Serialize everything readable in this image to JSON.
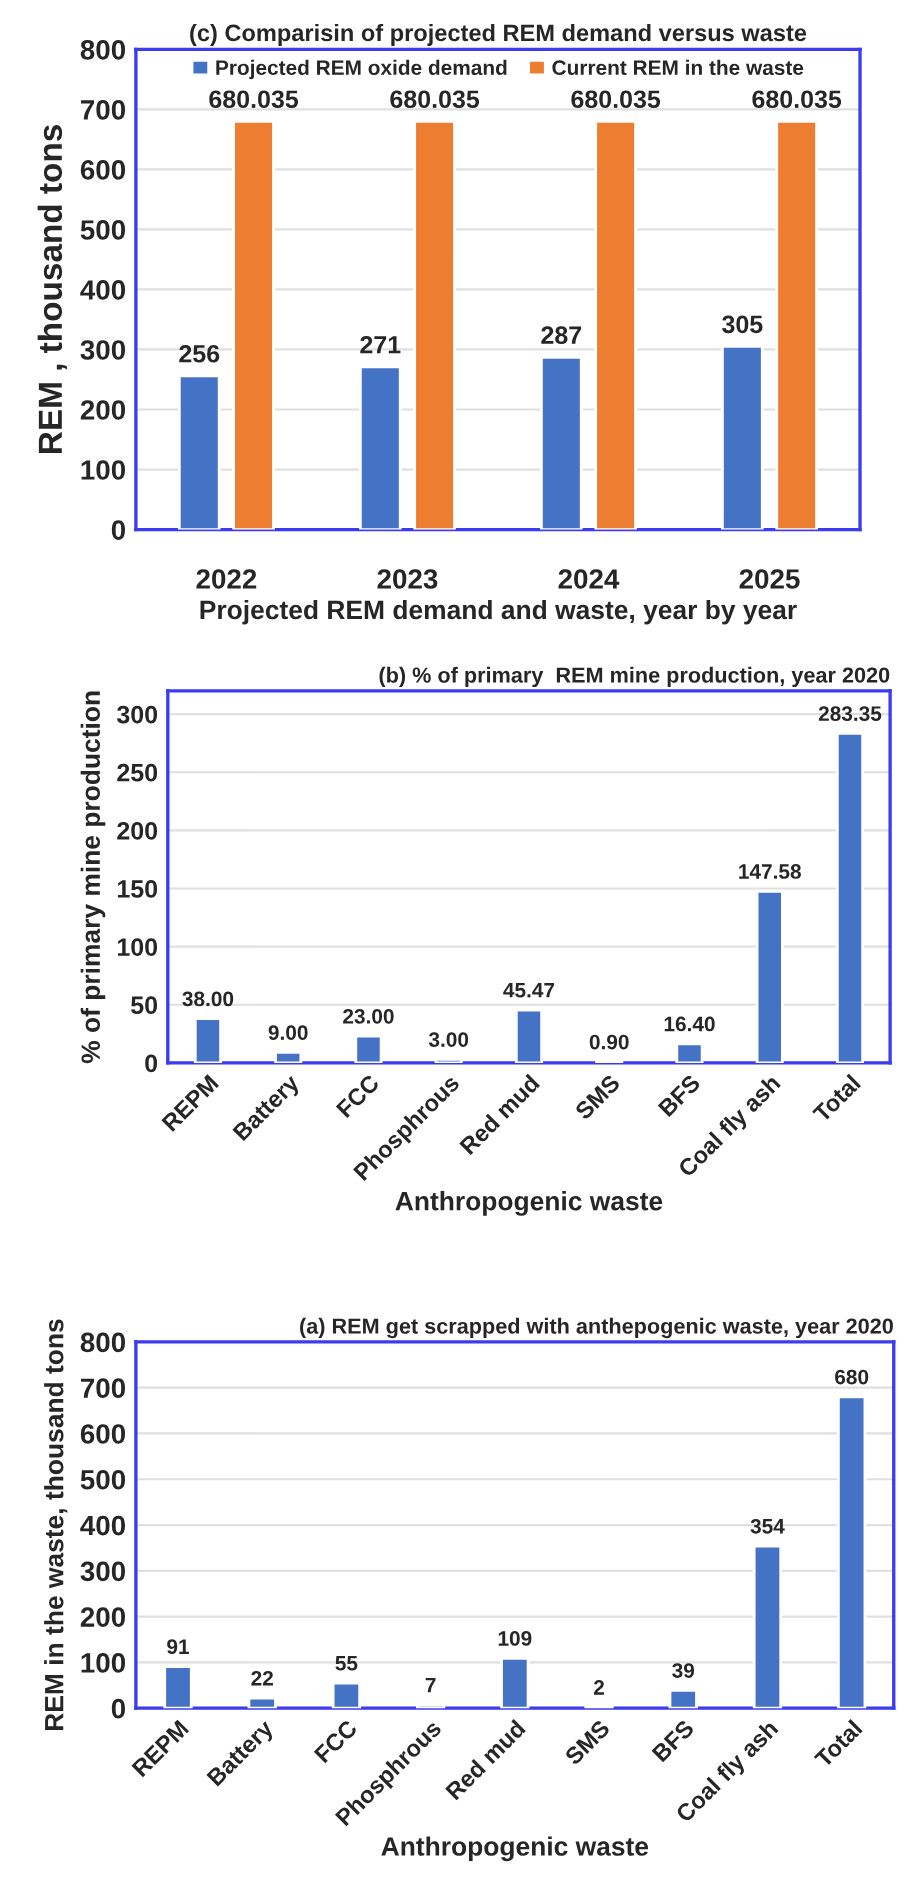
{
  "chart_data": [
    {
      "type": "bar",
      "title": "(c) Comparisin of projected REM demand versus waste",
      "xlabel": "Projected REM demand and waste, year by year",
      "ylabel": "REM , thousand tons",
      "categories": [
        "2022",
        "2023",
        "2024",
        "2025"
      ],
      "series": [
        {
          "name": "Projected REM oxide demand",
          "color": "#4472c4",
          "values": [
            256,
            271,
            287,
            305
          ]
        },
        {
          "name": "Current REM in the waste",
          "color": "#ed7d31",
          "values": [
            680.035,
            680.035,
            680.035,
            680.035
          ]
        }
      ],
      "ylim": [
        0,
        800
      ],
      "yticks": [
        0,
        100,
        200,
        300,
        400,
        500,
        600,
        700,
        800
      ],
      "grid": "y",
      "legend": "top",
      "data_labels": true
    },
    {
      "type": "bar",
      "title": "(b) % of primary  REM mine production, year 2020",
      "xlabel": "Anthropogenic waste",
      "ylabel": "% of primary mine production",
      "categories": [
        "REPM",
        "Battery",
        "FCC",
        "Phosphrous",
        "Red mud",
        "SMS",
        "BFS",
        "Coal fly ash",
        "Total"
      ],
      "values": [
        38.0,
        9.0,
        23.0,
        3.0,
        45.47,
        0.9,
        16.4,
        147.58,
        283.35
      ],
      "value_labels": [
        "38.00",
        "9.00",
        "23.00",
        "3.00",
        "45.47",
        "0.90",
        "16.40",
        "147.58",
        "283.35"
      ],
      "color": "#4472c4",
      "ylim": [
        0,
        320
      ],
      "yticks": [
        0,
        50,
        100,
        150,
        200,
        250,
        300
      ],
      "grid": "y"
    },
    {
      "type": "bar",
      "title": "(a) REM get scrapped with anthepogenic waste, year 2020",
      "xlabel": "Anthropogenic waste",
      "ylabel": "REM in the waste, thousand tons",
      "categories": [
        "REPM",
        "Battery",
        "FCC",
        "Phosphrous",
        "Red mud",
        "SMS",
        "BFS",
        "Coal fly ash",
        "Total"
      ],
      "values": [
        91,
        22,
        55,
        7,
        109,
        2,
        39,
        354,
        680
      ],
      "color": "#4472c4",
      "ylim": [
        0,
        800
      ],
      "yticks": [
        0,
        100,
        200,
        300,
        400,
        500,
        600,
        700,
        800
      ],
      "grid": "y",
      "data_labels": true
    }
  ]
}
